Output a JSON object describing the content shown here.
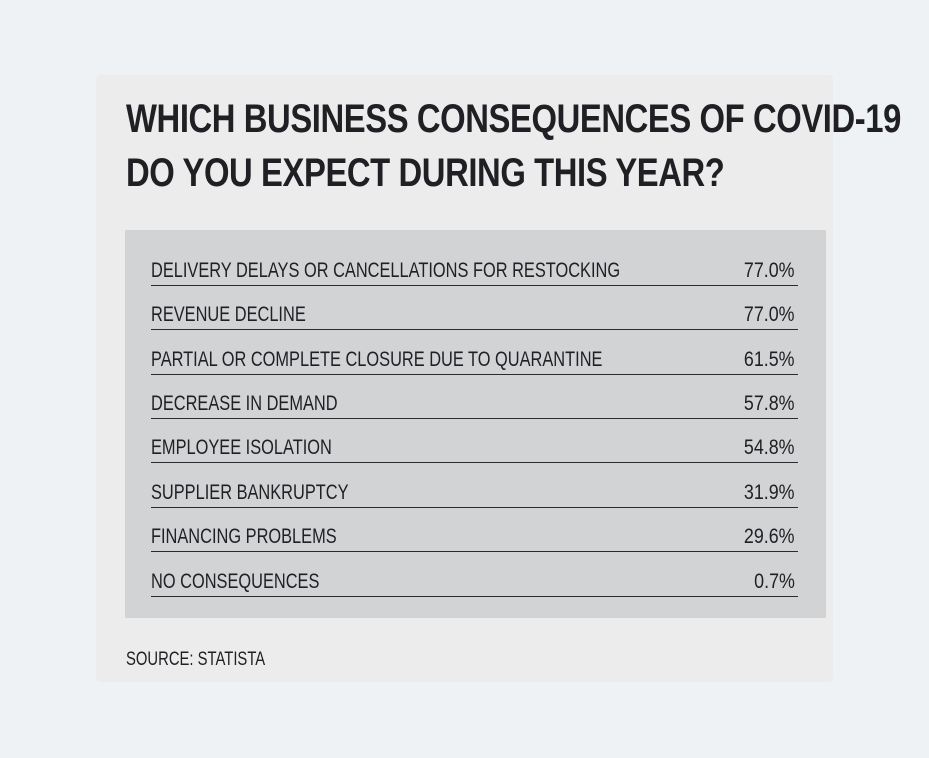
{
  "chart_data": {
    "type": "table",
    "title_lines": [
      "WHICH BUSINESS CONSEQUENCES OF COVID-19",
      "DO YOU EXPECT DURING THIS YEAR?"
    ],
    "rows": [
      {
        "label": "DELIVERY DELAYS OR CANCELLATIONS FOR RESTOCKING",
        "value": "77.0%"
      },
      {
        "label": "REVENUE DECLINE",
        "value": "77.0%"
      },
      {
        "label": "PARTIAL OR COMPLETE CLOSURE DUE TO QUARANTINE",
        "value": "61.5%"
      },
      {
        "label": "DECREASE IN DEMAND",
        "value": "57.8%"
      },
      {
        "label": "EMPLOYEE ISOLATION",
        "value": "54.8%"
      },
      {
        "label": "SUPPLIER BANKRUPTCY",
        "value": "31.9%"
      },
      {
        "label": "FINANCING PROBLEMS",
        "value": "29.6%"
      },
      {
        "label": "NO CONSEQUENCES",
        "value": "0.7%"
      }
    ],
    "source": "SOURCE: STATISTA"
  },
  "colors": {
    "page_background": "#eff2f5",
    "card_background": "#ececec",
    "panel_background": "#d2d3d5",
    "text": "#1f1f24"
  }
}
